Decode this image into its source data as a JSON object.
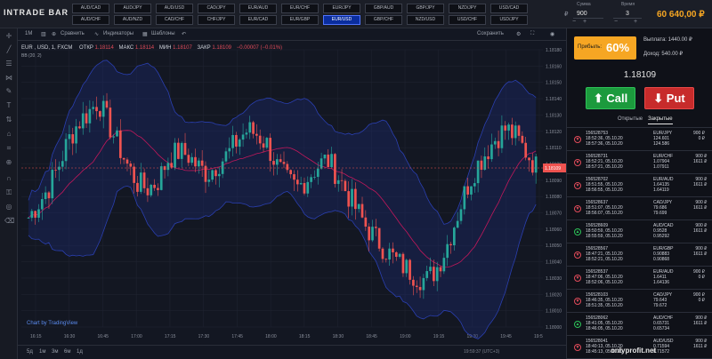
{
  "logo": "INTRADE BAR",
  "pairs": [
    "AUD/CAD",
    "AUD/CHF",
    "AUD/JPY",
    "AUD/NZD",
    "AUD/USD",
    "CAD/CHF",
    "CAD/JPY",
    "CHF/JPY",
    "EUR/AUD",
    "EUR/CAD",
    "EUR/CHF",
    "EUR/GBP",
    "EUR/JPY",
    "EUR/USD",
    "GBP/AUD",
    "GBP/CHF",
    "GBP/JPY",
    "NZD/USD",
    "NZD/JPY",
    "USD/CHF",
    "USD/CAD",
    "USD/JPY"
  ],
  "active_pair": "EUR/USD",
  "controls": {
    "amount_label": "Сумма",
    "currency": "₽",
    "amount": "900",
    "time_label": "Время",
    "time_value": "3",
    "plus": "+",
    "minus": "−"
  },
  "balance": "60 640,00 ₽",
  "chart_toolbar": {
    "interval": "1М",
    "compare": "Сравнить",
    "indicators": "Индикаторы",
    "templates": "Шаблоны",
    "save": "Сохранить"
  },
  "legend": {
    "symbol": "EUR , USD, 1, FXCM",
    "open_label": "ОТКР",
    "open": "1.18114",
    "high_label": "МАКС",
    "high": "1.18114",
    "low_label": "МИН",
    "low": "1.18107",
    "close_label": "ЗАКР",
    "close": "1.18109",
    "change": "−0.00007 (−0.01%)",
    "bb": "BB (20, 2)"
  },
  "tv_logo": "Chart by TradingView",
  "periods": [
    "5д",
    "1м",
    "3м",
    "6м",
    "1д"
  ],
  "server_time": "19:59:37 (UTC+3)",
  "right_panel": {
    "profit_label": "Прибыль:",
    "profit_pct": "60%",
    "payout_label": "Выплата:",
    "payout": "1440.00 ₽",
    "income_label": "Доход:",
    "income": "540.00 ₽",
    "price": "1.18109",
    "call": "Call",
    "put": "Put",
    "tab_open": "Открытые",
    "tab_closed": "Закрытые"
  },
  "trades": [
    {
      "id": "156528753",
      "t1": "18:52:36, 05.10.20",
      "t2": "18:57:36, 05.10.20",
      "asset": "EUR/JPY",
      "p1": "124.601",
      "p2": "124.586",
      "amt": "900 ₽",
      "win": "0 ₽",
      "dir": "down"
    },
    {
      "id": "156528731",
      "t1": "18:52:21, 05.10.20",
      "t2": "18:57:21, 05.10.20",
      "asset": "EUR/CHF",
      "p1": "1.07904",
      "p2": "1.07911",
      "amt": "900 ₽",
      "win": "1611 ₽",
      "dir": "down"
    },
    {
      "id": "156528702",
      "t1": "18:51:55, 05.10.20",
      "t2": "18:56:55, 05.10.20",
      "asset": "EUR/AUD",
      "p1": "1.64135",
      "p2": "1.64119",
      "amt": "900 ₽",
      "win": "1611 ₽",
      "dir": "down"
    },
    {
      "id": "156528637",
      "t1": "18:51:07, 05.10.20",
      "t2": "18:56:07, 05.10.20",
      "asset": "CAD/JPY",
      "p1": "79.686",
      "p2": "79.699",
      "amt": "900 ₽",
      "win": "1611 ₽",
      "dir": "down"
    },
    {
      "id": "156528609",
      "t1": "18:50:59, 05.10.20",
      "t2": "18:55:59, 05.10.20",
      "asset": "AUD/CAD",
      "p1": "0.9528",
      "p2": "0.95292",
      "amt": "900 ₽",
      "win": "1611 ₽",
      "dir": "up"
    },
    {
      "id": "156528567",
      "t1": "18:47:21, 05.10.20",
      "t2": "18:52:21, 05.10.20",
      "asset": "EUR/GBP",
      "p1": "0.90883",
      "p2": "0.90868",
      "amt": "900 ₽",
      "win": "1611 ₽",
      "dir": "down"
    },
    {
      "id": "156528537",
      "t1": "18:47:06, 05.10.20",
      "t2": "18:52:06, 05.10.20",
      "asset": "EUR/AUD",
      "p1": "1.6411",
      "p2": "1.64136",
      "amt": "900 ₽",
      "win": "0 ₽",
      "dir": "down"
    },
    {
      "id": "156528103",
      "t1": "18:46:35, 05.10.20",
      "t2": "18:51:35, 05.10.20",
      "asset": "CAD/JPY",
      "p1": "79.643",
      "p2": "79.672",
      "amt": "900 ₽",
      "win": "0 ₽",
      "dir": "down"
    },
    {
      "id": "156528062",
      "t1": "18:41:05, 05.10.20",
      "t2": "18:46:05, 05.10.20",
      "asset": "AUD/CHF",
      "p1": "0.65731",
      "p2": "0.65734",
      "amt": "900 ₽",
      "win": "1611 ₽",
      "dir": "up"
    },
    {
      "id": "156528041",
      "t1": "18:40:13, 05.10.20",
      "t2": "18:45:13, 05.10.20",
      "asset": "AUD/USD",
      "p1": "0.71594",
      "p2": "0.71572",
      "amt": "900 ₽",
      "win": "1611 ₽",
      "dir": "down"
    }
  ],
  "watermark": "onlyprofit.net",
  "colors": {
    "up": "#26a69a",
    "down": "#ef5350",
    "accent": "#f6a623",
    "call": "#1c9a3d",
    "put": "#c72b2b",
    "bollinger": "#2a3fb0"
  },
  "chart_data": {
    "type": "candlestick",
    "x_ticks": [
      "16:15",
      "16:30",
      "16:45",
      "17:00",
      "17:15",
      "17:30",
      "17:45",
      "18:00",
      "18:15",
      "18:30",
      "18:45",
      "19:00",
      "19:15",
      "19:30",
      "19:45",
      "19:5"
    ],
    "y_ticks": [
      "1.18180",
      "1.18160",
      "1.18150",
      "1.18140",
      "1.18130",
      "1.18120",
      "1.18110",
      "1.18100",
      "1.18090",
      "1.18080",
      "1.18070",
      "1.18060",
      "1.18050",
      "1.18040",
      "1.18030",
      "1.18020",
      "1.18010",
      "1.18000"
    ],
    "ylim": [
      1.18,
      1.1819
    ],
    "last_price": "1.18109",
    "last_time": "00:23",
    "close_path": [
      1.18075,
      1.18085,
      1.18095,
      1.1811,
      1.18128,
      1.1814,
      1.18147,
      1.18155,
      1.1814,
      1.18125,
      1.1811,
      1.18098,
      1.18095,
      1.181,
      1.18115,
      1.1812,
      1.18118,
      1.1811,
      1.18105,
      1.18112,
      1.18118,
      1.18128,
      1.18135,
      1.18132,
      1.18125,
      1.1811,
      1.181,
      1.18095,
      1.18102,
      1.1811,
      1.18115,
      1.18105,
      1.18092,
      1.1808,
      1.18068,
      1.1806,
      1.18052,
      1.18045,
      1.1804,
      1.18035,
      1.18032,
      1.1804,
      1.18055,
      1.18075,
      1.18095,
      1.1811,
      1.1812,
      1.1813,
      1.18136,
      1.1813,
      1.1812,
      1.1811
    ],
    "grid": true
  }
}
